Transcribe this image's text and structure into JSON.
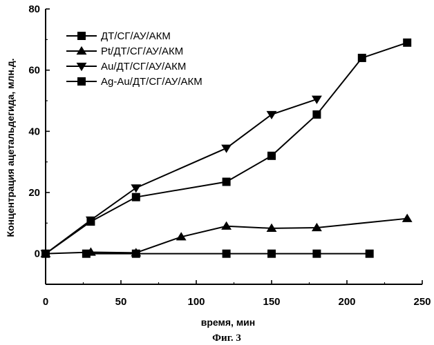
{
  "chart_data": {
    "type": "line",
    "xlabel": "время, мин",
    "ylabel": "Концентрация ацетальдегида, млн.д.",
    "caption": "Фиг. 3",
    "xlim": [
      0,
      250
    ],
    "ylim": [
      -10,
      80
    ],
    "x_ticks": [
      0,
      50,
      100,
      150,
      200,
      250
    ],
    "y_ticks": [
      0,
      20,
      40,
      60,
      80
    ],
    "grid": false,
    "legend_position": "top-left",
    "series": [
      {
        "name": "ДТ/СГ/АУ/АКМ",
        "marker": "square",
        "x": [
          27,
          60,
          120,
          150,
          180,
          215
        ],
        "y": [
          0,
          0,
          0,
          0,
          0,
          0
        ]
      },
      {
        "name": "Pt/ДТ/СГ/АУ/АКМ",
        "marker": "triangle-up",
        "x": [
          0,
          30,
          60,
          90,
          120,
          150,
          180,
          240
        ],
        "y": [
          0,
          0.5,
          0.3,
          5.5,
          9,
          8.3,
          8.5,
          11.5
        ]
      },
      {
        "name": "Au/ДТ/СГ/АУ/АКМ",
        "marker": "triangle-down",
        "x": [
          0,
          30,
          60,
          120,
          150,
          180
        ],
        "y": [
          0,
          11,
          21.5,
          34.5,
          45.5,
          50.5
        ]
      },
      {
        "name": "Ag-Au/ДТ/СГ/АУ/АКМ",
        "marker": "square",
        "x": [
          0,
          30,
          60,
          120,
          150,
          180,
          210,
          240
        ],
        "y": [
          0,
          10.5,
          18.5,
          23.5,
          32,
          45.5,
          64,
          69
        ]
      }
    ]
  }
}
